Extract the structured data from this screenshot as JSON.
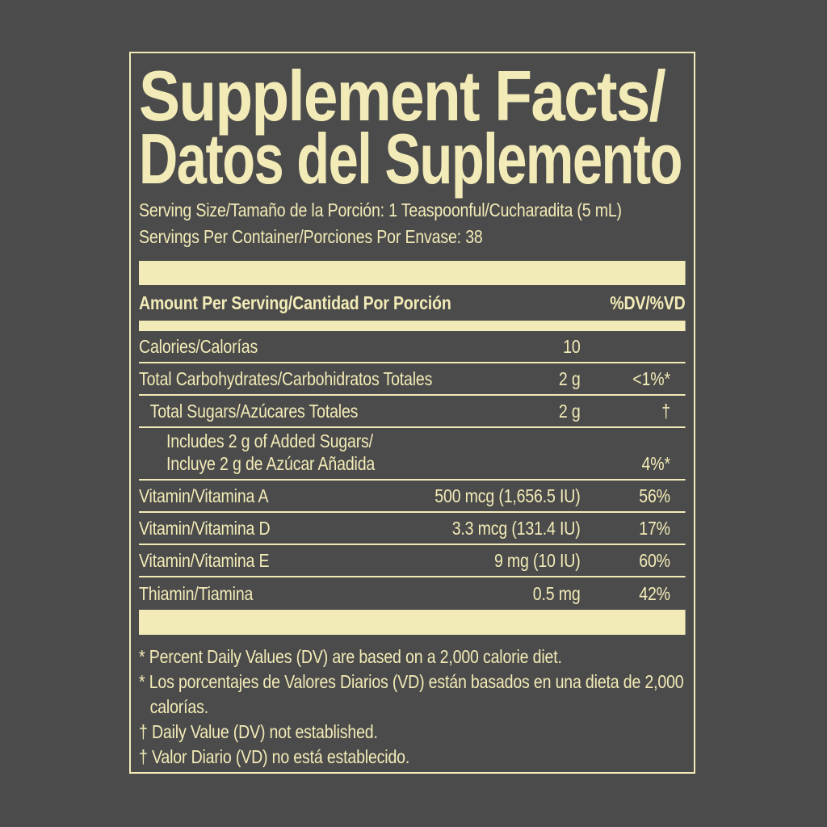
{
  "label": {
    "title_line1": "Supplement Facts/",
    "title_line2": "Datos del Suplemento",
    "serving_size": "Serving Size/Tamaño de la Porción: 1 Teaspoonful/Cucharadita (5 mL)",
    "servings_per_container": "Servings Per Container/Porciones Por Envase: 38",
    "header": {
      "amount_label": "Amount Per Serving/Cantidad Por Porción",
      "dv_label": "%DV/%VD"
    },
    "rows": [
      {
        "name": "Calories/Calorías",
        "amount": "10",
        "pct": ""
      },
      {
        "name": "Total Carbohydrates/Carbohidratos Totales",
        "amount": "2 g",
        "pct": "<1%*"
      },
      {
        "name": "Total Sugars/Azúcares Totales",
        "amount": "2 g",
        "pct": "†"
      },
      {
        "name": "Includes 2 g of Added Sugars/",
        "name2": "Incluye 2 g de Azúcar Añadida",
        "amount": "",
        "pct": "4%*"
      },
      {
        "name": "Vitamin/Vitamina A",
        "amount": "500 mcg (1,656.5 IU)",
        "pct": "56%"
      },
      {
        "name": "Vitamin/Vitamina D",
        "amount": "3.3 mcg (131.4 IU)",
        "pct": "17%"
      },
      {
        "name": "Vitamin/Vitamina E",
        "amount": "9 mg (10 IU)",
        "pct": "60%"
      },
      {
        "name": "Thiamin/Tiamina",
        "amount": "0.5 mg",
        "pct": "42%"
      }
    ],
    "footnotes": [
      "* Percent Daily Values (DV) are based on a 2,000 calorie diet.",
      "* Los porcentajes de Valores Diarios (VD) están basados en una dieta de 2,000 calorías.",
      "† Daily Value (DV) not established.",
      "† Valor Diario (VD) no está establecido."
    ],
    "colors": {
      "background": "#4B4B4B",
      "cream": "#F3EBB7"
    }
  }
}
